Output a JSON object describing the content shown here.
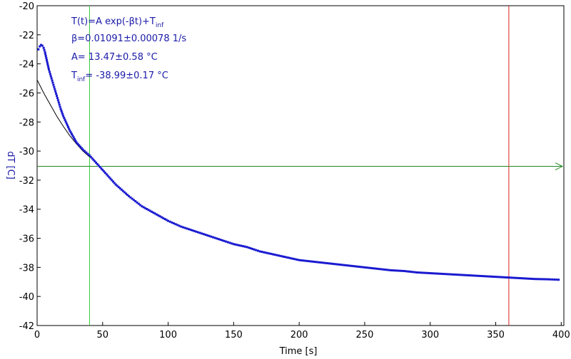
{
  "chart_data": {
    "type": "scatter",
    "xlabel": "Time [s]",
    "ylabel": "dT [C]",
    "xlim": [
      0,
      402
    ],
    "ylim": [
      -42,
      -20
    ],
    "xticks": [
      0,
      50,
      100,
      150,
      200,
      250,
      300,
      350,
      400
    ],
    "yticks": [
      -20,
      -22,
      -24,
      -26,
      -28,
      -30,
      -32,
      -34,
      -36,
      -38,
      -40,
      -42
    ],
    "grid": false,
    "colors": {
      "data": "#1a1ad0",
      "fit": "#000000",
      "green_cursor": "#33cc33",
      "red_cursor": "#dd2222",
      "baseline": "#228822",
      "annotation": "#1a1aa8"
    },
    "annotations": {
      "formula_main": "T(t)=A exp(-βt)+T",
      "formula_sub": "inf",
      "beta": "β=0.01091±0.00078 1/s",
      "amp": "A= 13.47±0.58 °C",
      "tinf_main": "T",
      "tinf_sub": "inf",
      "tinf_val": "= -38.99±0.17 °C"
    },
    "cursors": {
      "green_x": 40,
      "red_x": 360,
      "horizontal_y": -31.05
    },
    "series": [
      {
        "style": "markers",
        "x": [
          1,
          2,
          3,
          4,
          5,
          6,
          7,
          8,
          9,
          10,
          12,
          14,
          16,
          18,
          20,
          25,
          30,
          35,
          40,
          45,
          50,
          60,
          70,
          80,
          90,
          100,
          110,
          120,
          130,
          140,
          150,
          160,
          170,
          180,
          190,
          200,
          210,
          220,
          230,
          240,
          250,
          260,
          270,
          280,
          290,
          300,
          310,
          320,
          330,
          340,
          350,
          360,
          370,
          380,
          390,
          398
        ],
        "y": [
          -23.0,
          -22.8,
          -22.7,
          -22.75,
          -22.9,
          -23.2,
          -23.6,
          -24.0,
          -24.4,
          -24.7,
          -25.3,
          -25.9,
          -26.5,
          -27.1,
          -27.6,
          -28.6,
          -29.4,
          -29.9,
          -30.3,
          -30.8,
          -31.3,
          -32.3,
          -33.1,
          -33.8,
          -34.3,
          -34.8,
          -35.2,
          -35.5,
          -35.8,
          -36.1,
          -36.4,
          -36.6,
          -36.9,
          -37.1,
          -37.3,
          -37.5,
          -37.6,
          -37.7,
          -37.8,
          -37.9,
          -38.0,
          -38.1,
          -38.2,
          -38.25,
          -38.35,
          -38.4,
          -38.45,
          -38.5,
          -38.55,
          -38.6,
          -38.65,
          -38.7,
          -38.75,
          -38.8,
          -38.82,
          -38.85
        ]
      },
      {
        "style": "fit-line",
        "x": [
          0,
          5,
          10,
          15,
          20,
          25,
          30,
          35,
          40
        ],
        "y": [
          -25.1,
          -26.0,
          -26.8,
          -27.6,
          -28.3,
          -28.95,
          -29.5,
          -30.0,
          -30.4
        ]
      }
    ]
  }
}
